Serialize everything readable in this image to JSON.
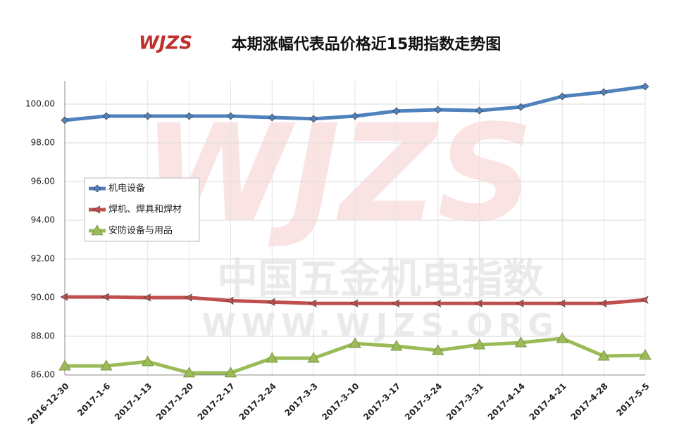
{
  "chart_data": {
    "type": "line",
    "title": "本期涨幅代表品价格近15期指数走势图",
    "logo": "WJZS",
    "watermark": [
      "WJZS",
      "中国五金机电指数",
      "WWW.WJZS.ORG"
    ],
    "categories": [
      "2016-12-30",
      "2017-1-6",
      "2017-1-13",
      "2017-1-20",
      "2017-2-17",
      "2017-2-24",
      "2017-3-3",
      "2017-3-10",
      "2017-3-17",
      "2017-3-24",
      "2017-3-31",
      "2017-4-14",
      "2017-4-21",
      "2017-4-28",
      "2017-5-5"
    ],
    "series": [
      {
        "name": "机电设备",
        "color": "#4f81bd",
        "marker": "diamond",
        "values": [
          99.17,
          99.38,
          99.38,
          99.38,
          99.38,
          99.31,
          99.24,
          99.38,
          99.64,
          99.71,
          99.67,
          99.85,
          100.4,
          100.62,
          100.91
        ]
      },
      {
        "name": "焊机、焊具和焊材",
        "color": "#c0504d",
        "marker": "arrow",
        "values": [
          90.03,
          90.03,
          90.0,
          90.0,
          89.84,
          89.77,
          89.7,
          89.7,
          89.7,
          89.7,
          89.7,
          89.7,
          89.7,
          89.7,
          89.88
        ]
      },
      {
        "name": "安防设备与用品",
        "color": "#9bbb59",
        "marker": "triangle",
        "values": [
          86.47,
          86.47,
          86.69,
          86.11,
          86.11,
          86.87,
          86.87,
          87.63,
          87.49,
          87.27,
          87.56,
          87.67,
          87.89,
          86.98,
          87.02
        ]
      }
    ],
    "ylim": [
      86,
      101.2
    ],
    "yticks": [
      {
        "value": 86,
        "label": "86.00"
      },
      {
        "value": 88,
        "label": "88.00"
      },
      {
        "value": 90,
        "label": "90.00"
      },
      {
        "value": 92,
        "label": "92.00"
      },
      {
        "value": 94,
        "label": "94.00"
      },
      {
        "value": 96,
        "label": "96.00"
      },
      {
        "value": 98,
        "label": "98.00"
      },
      {
        "value": 100,
        "label": "100.00"
      }
    ],
    "grid": true
  }
}
